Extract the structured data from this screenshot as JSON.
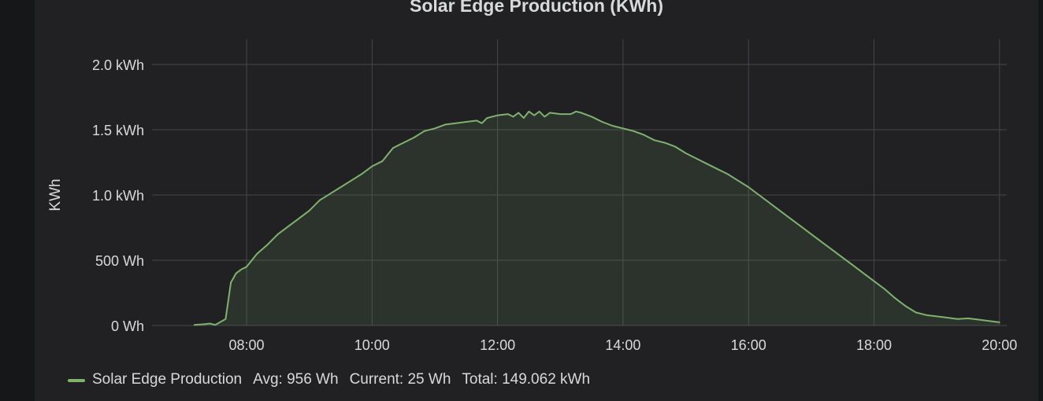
{
  "panel": {
    "title": "Solar Edge Production (KWh)"
  },
  "legend": {
    "name": "Solar Edge Production",
    "avg": "Avg: 956 Wh",
    "current": "Current: 25 Wh",
    "total": "Total: 149.062 kWh"
  },
  "colors": {
    "series": "#7eb26d",
    "grid": "#464649",
    "background": "#212124"
  },
  "chart_data": {
    "type": "area",
    "title": "Solar Edge Production (KWh)",
    "ylabel": "KWh",
    "xlabel": "",
    "ylim": [
      0,
      2000
    ],
    "y_ticks": [
      {
        "value": 0,
        "label": "0 Wh"
      },
      {
        "value": 500,
        "label": "500 Wh"
      },
      {
        "value": 1000,
        "label": "1.0 kWh"
      },
      {
        "value": 1500,
        "label": "1.5 kWh"
      },
      {
        "value": 2000,
        "label": "2.0 kWh"
      }
    ],
    "x_ticks": [
      "08:00",
      "10:00",
      "12:00",
      "14:00",
      "16:00",
      "18:00",
      "20:00"
    ],
    "grid": true,
    "legend_position": "bottom-left",
    "series": [
      {
        "name": "Solar Edge Production",
        "x": [
          "07:10",
          "07:20",
          "07:25",
          "07:30",
          "07:40",
          "07:45",
          "07:50",
          "07:55",
          "08:00",
          "08:10",
          "08:20",
          "08:30",
          "08:40",
          "08:50",
          "09:00",
          "09:10",
          "09:20",
          "09:30",
          "09:40",
          "09:50",
          "10:00",
          "10:10",
          "10:15",
          "10:20",
          "10:30",
          "10:40",
          "10:50",
          "11:00",
          "11:10",
          "11:20",
          "11:30",
          "11:40",
          "11:45",
          "11:50",
          "12:00",
          "12:10",
          "12:15",
          "12:20",
          "12:25",
          "12:30",
          "12:35",
          "12:40",
          "12:45",
          "12:50",
          "13:00",
          "13:10",
          "13:15",
          "13:20",
          "13:30",
          "13:35",
          "13:40",
          "13:50",
          "14:00",
          "14:05",
          "14:10",
          "14:20",
          "14:30",
          "14:40",
          "14:50",
          "15:00",
          "15:10",
          "15:20",
          "15:30",
          "15:40",
          "15:50",
          "16:00",
          "16:10",
          "16:20",
          "16:30",
          "16:40",
          "16:50",
          "17:00",
          "17:10",
          "17:20",
          "17:30",
          "17:40",
          "17:50",
          "18:00",
          "18:10",
          "18:20",
          "18:30",
          "18:40",
          "18:50",
          "19:00",
          "19:10",
          "19:20",
          "19:30",
          "19:40",
          "19:50",
          "20:00"
        ],
        "values": [
          5,
          10,
          15,
          5,
          50,
          330,
          400,
          430,
          450,
          550,
          620,
          700,
          760,
          820,
          880,
          960,
          1010,
          1060,
          1110,
          1160,
          1220,
          1260,
          1310,
          1360,
          1400,
          1440,
          1490,
          1510,
          1540,
          1550,
          1560,
          1570,
          1550,
          1590,
          1610,
          1620,
          1600,
          1630,
          1590,
          1640,
          1610,
          1640,
          1600,
          1630,
          1620,
          1620,
          1640,
          1630,
          1600,
          1580,
          1560,
          1530,
          1510,
          1500,
          1490,
          1460,
          1420,
          1400,
          1370,
          1320,
          1280,
          1240,
          1200,
          1160,
          1110,
          1060,
          1000,
          940,
          880,
          820,
          760,
          700,
          640,
          580,
          520,
          460,
          400,
          340,
          280,
          210,
          150,
          100,
          80,
          70,
          60,
          50,
          55,
          45,
          35,
          25
        ]
      }
    ]
  }
}
